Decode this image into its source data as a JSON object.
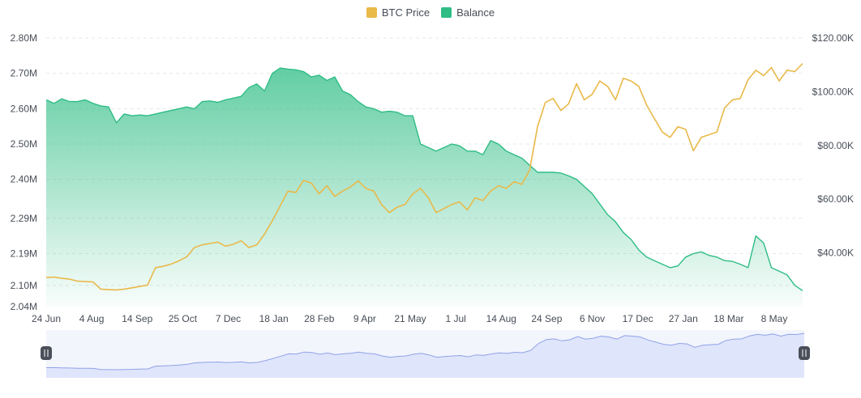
{
  "legend": {
    "btc_label": "BTC Price",
    "balance_label": "Balance"
  },
  "colors": {
    "btc": "#e9b949",
    "balance": "#2ebd85",
    "balance_fill_top": "#2ebd85",
    "grid": "#e6e8ea",
    "navigator_line": "#8fa2e6",
    "navigator_fill": "#dfe5fb",
    "handle": "#4a4f5a"
  },
  "chart_data": {
    "type": "line",
    "x_ticks": [
      "24 Jun",
      "4 Aug",
      "14 Sep",
      "25 Oct",
      "7 Dec",
      "18 Jan",
      "28 Feb",
      "9 Apr",
      "21 May",
      "1 Jul",
      "14 Aug",
      "24 Sep",
      "6 Nov",
      "17 Dec",
      "27 Jan",
      "18 Mar",
      "8 May"
    ],
    "y_left_ticks": [
      "2.80M",
      "2.70M",
      "2.60M",
      "2.50M",
      "2.40M",
      "2.29M",
      "2.19M",
      "2.10M",
      "2.04M"
    ],
    "y_left_values": [
      2.8,
      2.7,
      2.6,
      2.5,
      2.4,
      2.29,
      2.19,
      2.1,
      2.04
    ],
    "y_left_range": [
      2.04,
      2.8
    ],
    "y_right_ticks": [
      "$120.00K",
      "$100.00K",
      "$80.00K",
      "$60.00K",
      "$40.00K"
    ],
    "y_right_values": [
      120,
      100,
      80,
      60,
      40
    ],
    "y_right_range": [
      20,
      120
    ],
    "grid": true,
    "legend_position": "top-center",
    "series": [
      {
        "name": "Balance",
        "axis": "left",
        "type": "area",
        "values": [
          2.625,
          2.615,
          2.628,
          2.62,
          2.62,
          2.625,
          2.615,
          2.608,
          2.605,
          2.56,
          2.585,
          2.58,
          2.582,
          2.58,
          2.585,
          2.59,
          2.595,
          2.6,
          2.605,
          2.6,
          2.62,
          2.622,
          2.618,
          2.625,
          2.63,
          2.635,
          2.66,
          2.67,
          2.65,
          2.7,
          2.715,
          2.712,
          2.71,
          2.705,
          2.69,
          2.695,
          2.68,
          2.69,
          2.65,
          2.64,
          2.62,
          2.605,
          2.6,
          2.59,
          2.593,
          2.59,
          2.58,
          2.58,
          2.5,
          2.49,
          2.48,
          2.49,
          2.5,
          2.495,
          2.48,
          2.48,
          2.47,
          2.51,
          2.5,
          2.48,
          2.47,
          2.46,
          2.44,
          2.42,
          2.42,
          2.42,
          2.418,
          2.41,
          2.4,
          2.38,
          2.36,
          2.33,
          2.3,
          2.28,
          2.25,
          2.23,
          2.2,
          2.18,
          2.17,
          2.16,
          2.15,
          2.155,
          2.18,
          2.19,
          2.195,
          2.185,
          2.18,
          2.17,
          2.168,
          2.16,
          2.15,
          2.24,
          2.22,
          2.15,
          2.14,
          2.13,
          2.1,
          2.085
        ],
        "line_width": 1.4
      },
      {
        "name": "BTC Price",
        "axis": "right",
        "type": "line",
        "values": [
          30.8,
          31.0,
          30.5,
          30.2,
          29.5,
          29.3,
          29.2,
          26.5,
          26.3,
          26.2,
          26.5,
          27.0,
          27.5,
          28.0,
          34.5,
          35.0,
          35.8,
          37.0,
          38.5,
          42.0,
          43.0,
          43.5,
          44.0,
          42.5,
          43.2,
          44.5,
          42.0,
          43.0,
          47.0,
          52.0,
          57.5,
          63.0,
          62.5,
          67.0,
          66.0,
          62.0,
          65.0,
          61.0,
          63.0,
          64.5,
          66.8,
          64.0,
          63.0,
          58.0,
          55.0,
          57.0,
          58.0,
          62.0,
          64.0,
          60.5,
          55.0,
          56.5,
          58.0,
          59.0,
          56.0,
          60.5,
          59.5,
          63.0,
          65.0,
          64.0,
          66.5,
          65.5,
          71.0,
          87.0,
          96.0,
          97.5,
          93.0,
          95.5,
          103.0,
          97.0,
          99.0,
          104.0,
          102.0,
          97.0,
          105.0,
          104.0,
          102.0,
          95.0,
          90.0,
          85.0,
          83.0,
          87.0,
          86.0,
          78.0,
          83.0,
          84.0,
          85.0,
          94.0,
          97.0,
          97.5,
          104.5,
          108.0,
          106.0,
          109.0,
          104.0,
          108.0,
          107.5,
          110.5
        ],
        "line_width": 1.6
      }
    ]
  }
}
